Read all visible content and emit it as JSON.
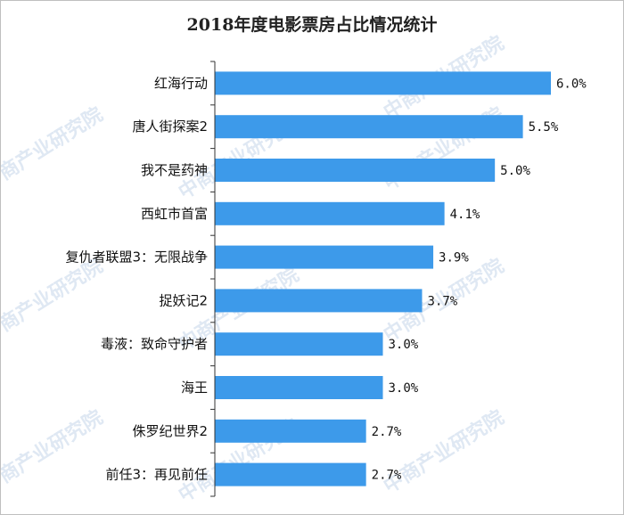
{
  "chart_data": {
    "type": "bar",
    "orientation": "horizontal",
    "title": "2018年度电影票房占比情况统计",
    "categories": [
      "红海行动",
      "唐人街探案2",
      "我不是药神",
      "西虹市首富",
      "复仇者联盟3：无限战争",
      "捉妖记2",
      "毒液：致命守护者",
      "海王",
      "侏罗纪世界2",
      "前任3：再见前任"
    ],
    "values": [
      6.0,
      5.5,
      5.0,
      4.1,
      3.9,
      3.7,
      3.0,
      3.0,
      2.7,
      2.7
    ],
    "value_labels": [
      "6.0%",
      "5.5%",
      "5.0%",
      "4.1%",
      "3.9%",
      "3.7%",
      "3.0%",
      "3.0%",
      "2.7%",
      "2.7%"
    ],
    "xlabel": "",
    "ylabel": "",
    "xlim": [
      0,
      6.0
    ],
    "grid": false,
    "bar_color": "#3d9aea"
  },
  "watermark": {
    "text": "中商产业研究院"
  }
}
